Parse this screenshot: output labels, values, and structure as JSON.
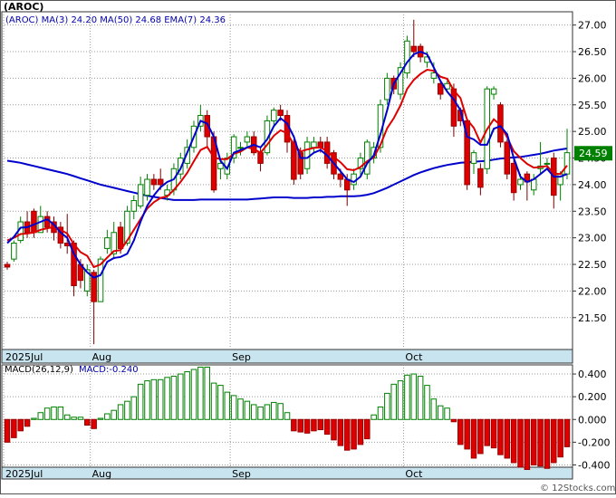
{
  "ticker_title": "(AROC)",
  "watermark": "© 12Stocks.com",
  "colors": {
    "up": "#ffffff",
    "up_border": "#008000",
    "down": "#dd0000",
    "ma3": "#0000cc",
    "ma50": "#0000cc",
    "ema7": "#dd0000",
    "macd_pos": "#ffffff",
    "macd_pos_border": "#008000",
    "macd_neg": "#dd0000",
    "date_band": "#c8e4ef",
    "grid": "#9a9a9a",
    "price_box": "#008000"
  },
  "chart_data": [
    {
      "type": "candlestick",
      "legend": [
        {
          "label": "(AROC)",
          "value": ""
        },
        {
          "label": "MA(3)",
          "value": "24.20"
        },
        {
          "label": "MA(50)",
          "value": "24.68"
        },
        {
          "label": "EMA(7)",
          "value": "24.36"
        }
      ],
      "last_price_label": "24.59",
      "ylim": [
        20.9,
        27.25
      ],
      "yticks": [
        "21.50",
        "22.00",
        "22.50",
        "23.00",
        "23.50",
        "24.00",
        "24.50",
        "25.00",
        "25.50",
        "26.00",
        "26.50",
        "27.00"
      ],
      "x_labels": [
        {
          "label": "2025Jul",
          "index": 0
        },
        {
          "label": "Aug",
          "index": 13
        },
        {
          "label": "Sep",
          "index": 34
        },
        {
          "label": "Oct",
          "index": 60
        }
      ],
      "candles": [
        [
          22.5,
          22.45,
          22.4,
          22.55
        ],
        [
          22.6,
          22.9,
          22.55,
          22.95
        ],
        [
          22.95,
          23.3,
          22.9,
          23.4
        ],
        [
          23.3,
          23.1,
          23.0,
          23.5
        ],
        [
          23.5,
          23.1,
          23.0,
          23.55
        ],
        [
          23.1,
          23.4,
          23.1,
          23.6
        ],
        [
          23.4,
          23.2,
          23.1,
          23.5
        ],
        [
          23.3,
          23.1,
          22.95,
          23.4
        ],
        [
          23.2,
          22.9,
          22.8,
          23.3
        ],
        [
          22.9,
          22.85,
          22.7,
          23.45
        ],
        [
          22.9,
          22.1,
          21.9,
          22.95
        ],
        [
          22.5,
          22.2,
          22.05,
          22.6
        ],
        [
          22.0,
          22.4,
          21.9,
          22.5
        ],
        [
          22.35,
          21.8,
          21.0,
          22.4
        ],
        [
          21.8,
          22.6,
          21.8,
          22.65
        ],
        [
          22.8,
          23.0,
          22.7,
          23.15
        ],
        [
          22.7,
          23.1,
          22.6,
          23.3
        ],
        [
          23.2,
          22.8,
          22.7,
          23.3
        ],
        [
          22.9,
          23.5,
          22.85,
          23.6
        ],
        [
          23.5,
          23.7,
          23.35,
          23.8
        ],
        [
          23.6,
          24.0,
          23.55,
          24.15
        ],
        [
          23.8,
          24.1,
          23.7,
          24.2
        ],
        [
          24.1,
          24.0,
          23.9,
          24.2
        ],
        [
          24.1,
          24.0,
          23.9,
          24.3
        ],
        [
          23.8,
          23.9,
          23.7,
          24.0
        ],
        [
          23.9,
          24.3,
          23.8,
          24.4
        ],
        [
          24.2,
          24.5,
          24.1,
          24.6
        ],
        [
          24.4,
          24.7,
          24.3,
          24.85
        ],
        [
          24.7,
          25.1,
          24.6,
          25.2
        ],
        [
          25.1,
          25.3,
          25.0,
          25.5
        ],
        [
          25.3,
          24.9,
          24.7,
          25.4
        ],
        [
          24.9,
          23.9,
          23.85,
          25.0
        ],
        [
          24.3,
          24.4,
          24.1,
          24.5
        ],
        [
          24.2,
          24.5,
          24.1,
          24.6
        ],
        [
          24.5,
          24.9,
          24.4,
          24.95
        ],
        [
          24.7,
          24.7,
          24.55,
          24.8
        ],
        [
          24.8,
          24.9,
          24.7,
          25.0
        ],
        [
          24.9,
          24.6,
          24.55,
          25.0
        ],
        [
          24.6,
          24.4,
          24.25,
          24.7
        ],
        [
          24.6,
          25.2,
          24.55,
          25.3
        ],
        [
          25.2,
          25.4,
          25.1,
          25.45
        ],
        [
          25.4,
          25.3,
          25.2,
          25.5
        ],
        [
          25.3,
          24.8,
          24.6,
          25.4
        ],
        [
          24.8,
          24.1,
          24.0,
          24.85
        ],
        [
          24.6,
          24.2,
          24.1,
          24.7
        ],
        [
          24.3,
          24.8,
          24.2,
          24.9
        ],
        [
          24.7,
          24.8,
          24.6,
          24.9
        ],
        [
          24.8,
          24.7,
          24.6,
          24.9
        ],
        [
          24.8,
          24.4,
          24.3,
          24.9
        ],
        [
          24.6,
          24.2,
          24.1,
          24.65
        ],
        [
          24.2,
          24.1,
          23.95,
          24.3
        ],
        [
          24.1,
          23.9,
          23.6,
          24.2
        ],
        [
          24.0,
          24.2,
          23.9,
          24.3
        ],
        [
          24.3,
          24.5,
          24.15,
          24.6
        ],
        [
          24.2,
          24.8,
          24.1,
          24.85
        ],
        [
          24.5,
          24.7,
          24.4,
          24.8
        ],
        [
          24.7,
          25.5,
          24.6,
          25.6
        ],
        [
          25.6,
          26.0,
          25.5,
          26.1
        ],
        [
          26.0,
          25.8,
          25.7,
          26.05
        ],
        [
          25.7,
          26.2,
          25.6,
          26.3
        ],
        [
          26.1,
          26.7,
          26.0,
          26.8
        ],
        [
          26.6,
          26.5,
          26.4,
          27.1
        ],
        [
          26.6,
          26.4,
          26.3,
          26.65
        ],
        [
          26.3,
          26.4,
          26.2,
          26.5
        ],
        [
          26.0,
          26.1,
          25.9,
          26.3
        ],
        [
          25.9,
          25.7,
          25.6,
          25.95
        ],
        [
          25.8,
          25.9,
          25.75,
          25.95
        ],
        [
          25.8,
          25.1,
          24.9,
          25.9
        ],
        [
          25.4,
          25.2,
          25.1,
          25.45
        ],
        [
          25.2,
          24.0,
          23.9,
          25.25
        ],
        [
          24.4,
          24.6,
          24.2,
          24.65
        ],
        [
          24.3,
          23.95,
          23.8,
          24.4
        ],
        [
          24.3,
          25.8,
          24.2,
          25.85
        ],
        [
          25.7,
          25.8,
          25.6,
          25.85
        ],
        [
          25.5,
          24.8,
          24.7,
          25.55
        ],
        [
          24.8,
          24.2,
          24.1,
          24.85
        ],
        [
          24.4,
          23.85,
          23.7,
          24.5
        ],
        [
          24.0,
          24.1,
          23.9,
          24.2
        ],
        [
          24.2,
          24.05,
          23.7,
          24.25
        ],
        [
          23.9,
          24.1,
          23.8,
          24.2
        ],
        [
          24.3,
          24.35,
          24.2,
          24.8
        ],
        [
          24.4,
          24.4,
          24.3,
          24.5
        ],
        [
          24.5,
          23.8,
          23.55,
          24.6
        ],
        [
          24.0,
          24.2,
          23.7,
          24.25
        ],
        [
          24.2,
          24.6,
          24.1,
          25.05
        ]
      ],
      "ma3": [
        22.9,
        23.02,
        23.19,
        23.2,
        23.25,
        23.3,
        23.35,
        23.25,
        23.1,
        23.0,
        22.7,
        22.5,
        22.35,
        22.25,
        22.3,
        22.55,
        22.62,
        22.64,
        22.7,
        22.95,
        23.3,
        23.6,
        23.8,
        23.95,
        24.05,
        24.1,
        24.3,
        24.6,
        24.9,
        25.2,
        25.15,
        24.9,
        24.45,
        24.3,
        24.6,
        24.65,
        24.7,
        24.75,
        24.7,
        24.85,
        25.1,
        25.25,
        25.15,
        24.9,
        24.5,
        24.5,
        24.6,
        24.65,
        24.55,
        24.4,
        24.25,
        24.1,
        24.05,
        24.15,
        24.4,
        24.55,
        24.95,
        25.4,
        25.9,
        26.1,
        26.3,
        26.45,
        26.5,
        26.45,
        26.2,
        25.95,
        25.75,
        25.6,
        25.4,
        24.9,
        24.85,
        24.75,
        24.75,
        25.05,
        25.1,
        24.95,
        24.5,
        24.15,
        24.05,
        24.1,
        24.2,
        24.3,
        24.15,
        24.15,
        24.2
      ],
      "ma50": [
        24.45,
        24.43,
        24.41,
        24.38,
        24.35,
        24.32,
        24.29,
        24.26,
        24.23,
        24.2,
        24.16,
        24.12,
        24.08,
        24.04,
        24.0,
        23.97,
        23.94,
        23.91,
        23.88,
        23.85,
        23.82,
        23.79,
        23.77,
        23.75,
        23.73,
        23.71,
        23.71,
        23.71,
        23.71,
        23.72,
        23.72,
        23.72,
        23.72,
        23.72,
        23.72,
        23.72,
        23.72,
        23.73,
        23.74,
        23.75,
        23.76,
        23.76,
        23.76,
        23.75,
        23.75,
        23.75,
        23.76,
        23.76,
        23.77,
        23.77,
        23.78,
        23.78,
        23.78,
        23.79,
        23.81,
        23.84,
        23.89,
        23.94,
        24.0,
        24.06,
        24.12,
        24.18,
        24.23,
        24.27,
        24.31,
        24.34,
        24.37,
        24.39,
        24.41,
        24.42,
        24.43,
        24.44,
        24.45,
        24.47,
        24.49,
        24.5,
        24.51,
        24.52,
        24.54,
        24.56,
        24.58,
        24.61,
        24.64,
        24.66,
        24.68
      ],
      "ema7": [
        22.95,
        23.0,
        23.07,
        23.08,
        23.1,
        23.15,
        23.18,
        23.2,
        23.15,
        23.08,
        22.88,
        22.73,
        22.66,
        22.45,
        22.5,
        22.63,
        22.75,
        22.77,
        22.95,
        23.15,
        23.35,
        23.55,
        23.67,
        23.75,
        23.78,
        23.9,
        24.05,
        24.22,
        24.44,
        24.65,
        24.71,
        24.51,
        24.48,
        24.48,
        24.58,
        24.62,
        24.7,
        24.67,
        24.6,
        24.75,
        24.92,
        25.02,
        24.97,
        24.75,
        24.62,
        24.66,
        24.69,
        24.7,
        24.63,
        24.52,
        24.42,
        24.29,
        24.27,
        24.33,
        24.44,
        24.51,
        24.75,
        25.06,
        25.25,
        25.49,
        25.8,
        25.97,
        26.08,
        26.16,
        26.14,
        26.03,
        25.99,
        25.77,
        25.63,
        25.22,
        25.07,
        24.79,
        25.04,
        25.23,
        25.12,
        24.89,
        24.63,
        24.5,
        24.39,
        24.32,
        24.33,
        24.35,
        24.21,
        24.2,
        24.36
      ],
      "macd_title": "MACD(26,12,9)",
      "macd_value_label": "MACD:-0.240",
      "macd_ylim": [
        -0.42,
        0.48
      ],
      "macd_yticks": [
        "0.400",
        "0.200",
        "0.000",
        "-0.200",
        "-0.400"
      ],
      "macd_hist": [
        -0.2,
        -0.16,
        -0.1,
        -0.06,
        0.01,
        0.06,
        0.1,
        0.11,
        0.11,
        0.04,
        0.02,
        0.02,
        -0.05,
        -0.08,
        0.01,
        0.05,
        0.08,
        0.13,
        0.16,
        0.2,
        0.31,
        0.34,
        0.35,
        0.35,
        0.37,
        0.38,
        0.4,
        0.42,
        0.44,
        0.46,
        0.46,
        0.32,
        0.3,
        0.24,
        0.21,
        0.18,
        0.16,
        0.13,
        0.11,
        0.13,
        0.15,
        0.14,
        0.06,
        -0.1,
        -0.11,
        -0.12,
        -0.1,
        -0.09,
        -0.13,
        -0.18,
        -0.23,
        -0.27,
        -0.26,
        -0.22,
        -0.17,
        0.04,
        0.11,
        0.23,
        0.31,
        0.34,
        0.39,
        0.4,
        0.38,
        0.3,
        0.18,
        0.12,
        0.1,
        -0.02,
        -0.22,
        -0.26,
        -0.34,
        -0.3,
        -0.23,
        -0.25,
        -0.31,
        -0.34,
        -0.38,
        -0.42,
        -0.44,
        -0.4,
        -0.41,
        -0.43,
        -0.38,
        -0.33,
        -0.24
      ]
    }
  ]
}
